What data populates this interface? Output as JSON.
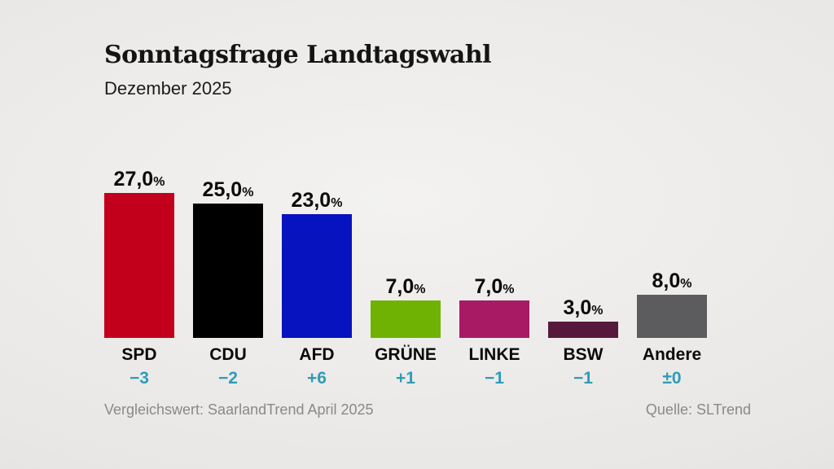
{
  "header": {
    "title": "Sonntagsfrage Landtagswahl",
    "subtitle": "Dezember 2025"
  },
  "footer": {
    "comparison_note": "Vergleichswert: SaarlandTrend April 2025",
    "source": "Quelle: SLTrend"
  },
  "colors": {
    "delta_text": "#2e9cb8",
    "value_text": "#0a0a0a",
    "footer_text": "#8b8887"
  },
  "chart_data": {
    "type": "bar",
    "title": "Sonntagsfrage Landtagswahl",
    "subtitle": "Dezember 2025",
    "unit": "%",
    "categories": [
      "SPD",
      "CDU",
      "AFD",
      "GRÜNE",
      "LINKE",
      "BSW",
      "Andere"
    ],
    "values": [
      27.0,
      25.0,
      23.0,
      7.0,
      7.0,
      3.0,
      8.0
    ],
    "value_labels": [
      "27,0",
      "25,0",
      "23,0",
      "7,0",
      "7,0",
      "3,0",
      "8,0"
    ],
    "deltas": [
      "−3",
      "−2",
      "+6",
      "+1",
      "−1",
      "−1",
      "±0"
    ],
    "bar_colors": [
      "#c3001c",
      "#000000",
      "#0613be",
      "#70b204",
      "#a81a64",
      "#57193b",
      "#5c5c5e"
    ],
    "ylim": [
      0,
      30
    ],
    "grid": false,
    "legend": "none",
    "annotations": [
      "Vergleichswert: SaarlandTrend April 2025",
      "Quelle: SLTrend"
    ]
  }
}
